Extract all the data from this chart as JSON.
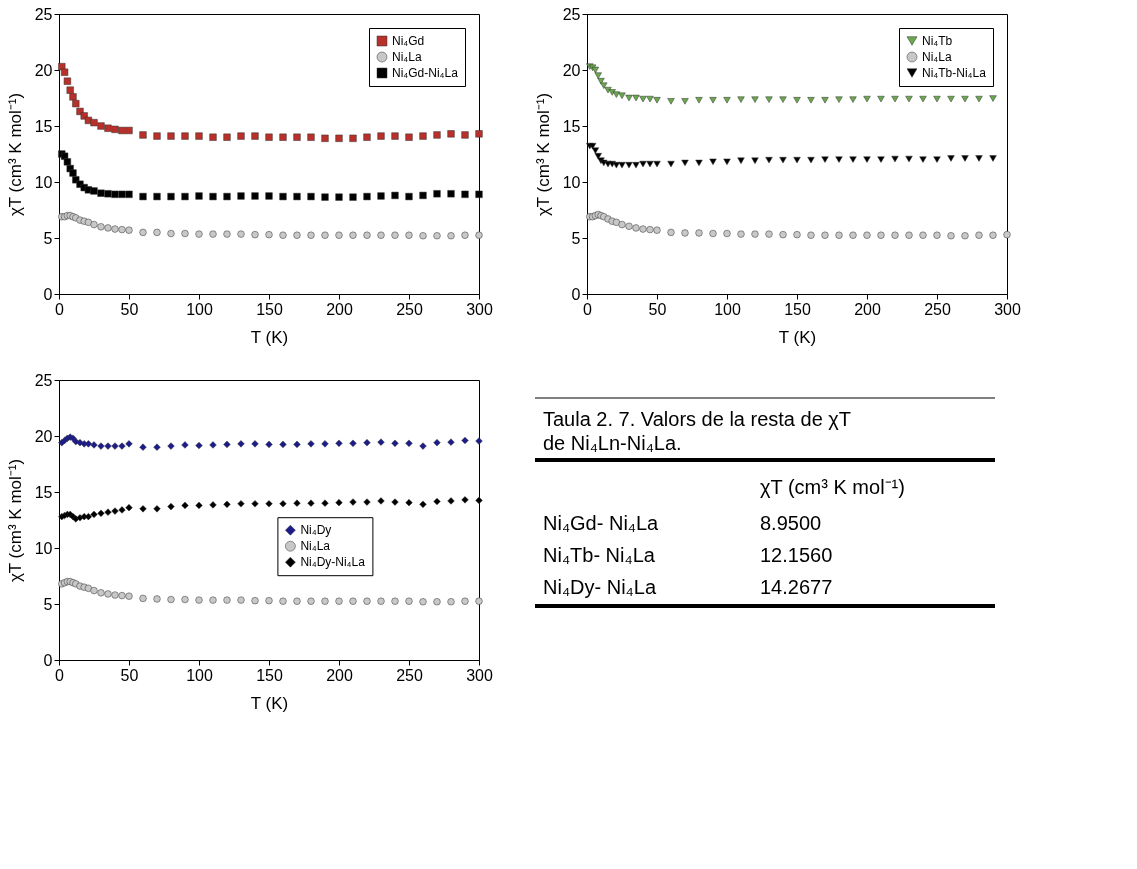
{
  "chart_data": [
    {
      "type": "scatter",
      "xlabel": "T (K)",
      "ylabel": "χT (cm³ K mol⁻¹)",
      "xlim": [
        0,
        300
      ],
      "ylim": [
        0,
        25
      ],
      "xticks": [
        0,
        50,
        100,
        150,
        200,
        250,
        300
      ],
      "yticks": [
        0,
        5,
        10,
        15,
        20,
        25
      ],
      "legend": "top right",
      "grid": false,
      "x": [
        2,
        4,
        6,
        8,
        10,
        12,
        15,
        18,
        21,
        25,
        30,
        35,
        40,
        45,
        50,
        60,
        70,
        80,
        90,
        100,
        110,
        120,
        130,
        140,
        150,
        160,
        170,
        180,
        190,
        200,
        210,
        220,
        230,
        240,
        250,
        260,
        270,
        280,
        290,
        300
      ],
      "series": [
        {
          "name": "Ni₄Gd",
          "color": "#b8302a",
          "marker": "square",
          "values": [
            20.3,
            19.8,
            19.0,
            18.2,
            17.6,
            17.0,
            16.3,
            15.9,
            15.5,
            15.3,
            15.0,
            14.8,
            14.7,
            14.6,
            14.6,
            14.2,
            14.1,
            14.1,
            14.1,
            14.1,
            14.0,
            14.0,
            14.1,
            14.1,
            14.0,
            14.0,
            14.0,
            14.0,
            13.9,
            13.9,
            13.9,
            14.0,
            14.1,
            14.1,
            14.0,
            14.1,
            14.2,
            14.3,
            14.2,
            14.3
          ]
        },
        {
          "name": "Ni₄La",
          "color": "#c8c8c8",
          "marker": "circle",
          "values": [
            6.9,
            6.9,
            7.0,
            7.0,
            6.9,
            6.8,
            6.6,
            6.5,
            6.4,
            6.2,
            6.0,
            5.9,
            5.8,
            5.75,
            5.7,
            5.5,
            5.5,
            5.4,
            5.4,
            5.35,
            5.35,
            5.35,
            5.35,
            5.3,
            5.3,
            5.25,
            5.25,
            5.25,
            5.25,
            5.25,
            5.25,
            5.25,
            5.25,
            5.25,
            5.25,
            5.2,
            5.2,
            5.2,
            5.25,
            5.25
          ]
        },
        {
          "name": "Ni₄Gd-Ni₄La",
          "color": "#000000",
          "marker": "square",
          "values": [
            12.5,
            12.3,
            11.8,
            11.2,
            10.8,
            10.2,
            9.8,
            9.5,
            9.3,
            9.2,
            9.0,
            8.95,
            8.9,
            8.9,
            8.9,
            8.7,
            8.7,
            8.7,
            8.7,
            8.75,
            8.7,
            8.7,
            8.75,
            8.75,
            8.75,
            8.7,
            8.7,
            8.7,
            8.65,
            8.65,
            8.65,
            8.7,
            8.75,
            8.8,
            8.7,
            8.8,
            8.95,
            8.95,
            8.9,
            8.9
          ]
        }
      ]
    },
    {
      "type": "scatter",
      "xlabel": "T (K)",
      "ylabel": "χT (cm³ K mol⁻¹)",
      "xlim": [
        0,
        300
      ],
      "ylim": [
        0,
        25
      ],
      "xticks": [
        0,
        50,
        100,
        150,
        200,
        250,
        300
      ],
      "yticks": [
        0,
        5,
        10,
        15,
        20,
        25
      ],
      "legend": "top right",
      "grid": false,
      "x": [
        2,
        4,
        6,
        8,
        10,
        12,
        15,
        18,
        21,
        25,
        30,
        35,
        40,
        45,
        50,
        60,
        70,
        80,
        90,
        100,
        110,
        120,
        130,
        140,
        150,
        160,
        170,
        180,
        190,
        200,
        210,
        220,
        230,
        240,
        250,
        260,
        270,
        280,
        290,
        300
      ],
      "series": [
        {
          "name": "Ni₄Tb",
          "color": "#6aa84f",
          "marker": "triangle",
          "x": [
            2,
            4,
            6,
            8,
            10,
            12,
            15,
            18,
            21,
            25,
            30,
            35,
            40,
            45,
            50,
            60,
            70,
            80,
            90,
            100,
            110,
            120,
            130,
            140,
            150,
            160,
            170,
            180,
            190,
            200,
            210,
            220,
            230,
            240,
            250,
            260,
            270,
            280,
            290
          ],
          "values": [
            20.3,
            20.2,
            20.0,
            19.5,
            19.0,
            18.6,
            18.2,
            18.0,
            17.8,
            17.7,
            17.5,
            17.5,
            17.4,
            17.4,
            17.3,
            17.2,
            17.2,
            17.3,
            17.3,
            17.3,
            17.35,
            17.35,
            17.35,
            17.35,
            17.3,
            17.3,
            17.3,
            17.35,
            17.35,
            17.4,
            17.4,
            17.4,
            17.4,
            17.4,
            17.4,
            17.4,
            17.4,
            17.4,
            17.45
          ]
        },
        {
          "name": "Ni₄La",
          "color": "#c8c8c8",
          "marker": "circle",
          "values": [
            6.9,
            6.9,
            7.0,
            7.1,
            7.0,
            6.9,
            6.7,
            6.5,
            6.4,
            6.2,
            6.05,
            5.9,
            5.8,
            5.75,
            5.7,
            5.5,
            5.45,
            5.45,
            5.4,
            5.4,
            5.35,
            5.35,
            5.35,
            5.3,
            5.3,
            5.25,
            5.25,
            5.25,
            5.25,
            5.25,
            5.25,
            5.25,
            5.25,
            5.25,
            5.25,
            5.2,
            5.2,
            5.25,
            5.25,
            5.3
          ]
        },
        {
          "name": "Ni₄Tb-Ni₄La",
          "color": "#000000",
          "marker": "triangle",
          "x": [
            2,
            4,
            6,
            8,
            10,
            12,
            15,
            18,
            21,
            25,
            30,
            35,
            40,
            45,
            50,
            60,
            70,
            80,
            90,
            100,
            110,
            120,
            130,
            140,
            150,
            160,
            170,
            180,
            190,
            200,
            210,
            220,
            230,
            240,
            250,
            260,
            270,
            280,
            290
          ],
          "values": [
            13.2,
            13.2,
            12.8,
            12.3,
            11.9,
            11.7,
            11.6,
            11.6,
            11.5,
            11.5,
            11.5,
            11.5,
            11.6,
            11.6,
            11.6,
            11.6,
            11.7,
            11.7,
            11.8,
            11.8,
            11.9,
            11.9,
            11.95,
            11.95,
            11.95,
            11.95,
            12.0,
            12.0,
            12.0,
            12.0,
            12.0,
            12.05,
            12.05,
            12.0,
            12.0,
            12.1,
            12.1,
            12.1,
            12.1
          ]
        }
      ]
    },
    {
      "type": "scatter",
      "xlabel": "T (K)",
      "ylabel": "χT (cm³ K mol⁻¹)",
      "xlim": [
        0,
        300
      ],
      "ylim": [
        0,
        25
      ],
      "xticks": [
        0,
        50,
        100,
        150,
        200,
        250,
        300
      ],
      "yticks": [
        0,
        5,
        10,
        15,
        20,
        25
      ],
      "legend": "right",
      "grid": false,
      "x": [
        2,
        4,
        6,
        8,
        10,
        12,
        15,
        18,
        21,
        25,
        30,
        35,
        40,
        45,
        50,
        60,
        70,
        80,
        90,
        100,
        110,
        120,
        130,
        140,
        150,
        160,
        170,
        180,
        190,
        200,
        210,
        220,
        230,
        240,
        250,
        260,
        270,
        280,
        290,
        300
      ],
      "series": [
        {
          "name": "Ni₄Dy",
          "color": "#1c1c8c",
          "marker": "diamond",
          "values": [
            19.4,
            19.6,
            19.8,
            19.9,
            19.8,
            19.5,
            19.4,
            19.3,
            19.3,
            19.2,
            19.1,
            19.1,
            19.1,
            19.1,
            19.3,
            19.0,
            19.0,
            19.1,
            19.2,
            19.15,
            19.2,
            19.25,
            19.3,
            19.3,
            19.25,
            19.25,
            19.25,
            19.3,
            19.3,
            19.35,
            19.35,
            19.4,
            19.45,
            19.35,
            19.35,
            19.1,
            19.4,
            19.45,
            19.6,
            19.55
          ]
        },
        {
          "name": "Ni₄La",
          "color": "#c8c8c8",
          "marker": "circle",
          "values": [
            6.8,
            6.9,
            7.0,
            7.0,
            6.9,
            6.8,
            6.6,
            6.5,
            6.4,
            6.2,
            6.0,
            5.9,
            5.8,
            5.75,
            5.7,
            5.5,
            5.45,
            5.4,
            5.4,
            5.35,
            5.35,
            5.35,
            5.35,
            5.3,
            5.3,
            5.25,
            5.25,
            5.25,
            5.25,
            5.25,
            5.25,
            5.25,
            5.25,
            5.25,
            5.25,
            5.2,
            5.2,
            5.2,
            5.25,
            5.25
          ]
        },
        {
          "name": "Ni₄Dy-Ni₄La",
          "color": "#000000",
          "marker": "diamond",
          "values": [
            12.8,
            12.9,
            13.0,
            13.0,
            12.8,
            12.6,
            12.7,
            12.8,
            12.8,
            13.0,
            13.1,
            13.2,
            13.3,
            13.4,
            13.6,
            13.5,
            13.5,
            13.7,
            13.8,
            13.8,
            13.85,
            13.9,
            13.95,
            13.95,
            13.95,
            13.95,
            14.0,
            14.0,
            14.0,
            14.05,
            14.1,
            14.1,
            14.2,
            14.1,
            14.05,
            13.9,
            14.15,
            14.2,
            14.3,
            14.25
          ]
        }
      ]
    },
    {
      "type": "other",
      "title": "Taula 2. 7. Valors de la resta de χT de Ni₄Ln-Ni₄La.",
      "xlabel": "χT (cm³ K mol⁻¹)",
      "categories": [
        "Ni₄Gd- Ni₄La",
        "Ni₄Tb- Ni₄La",
        "Ni₄Dy- Ni₄La"
      ],
      "value_labels": [
        "8.9500",
        "12.1560",
        "14.2677"
      ]
    }
  ]
}
